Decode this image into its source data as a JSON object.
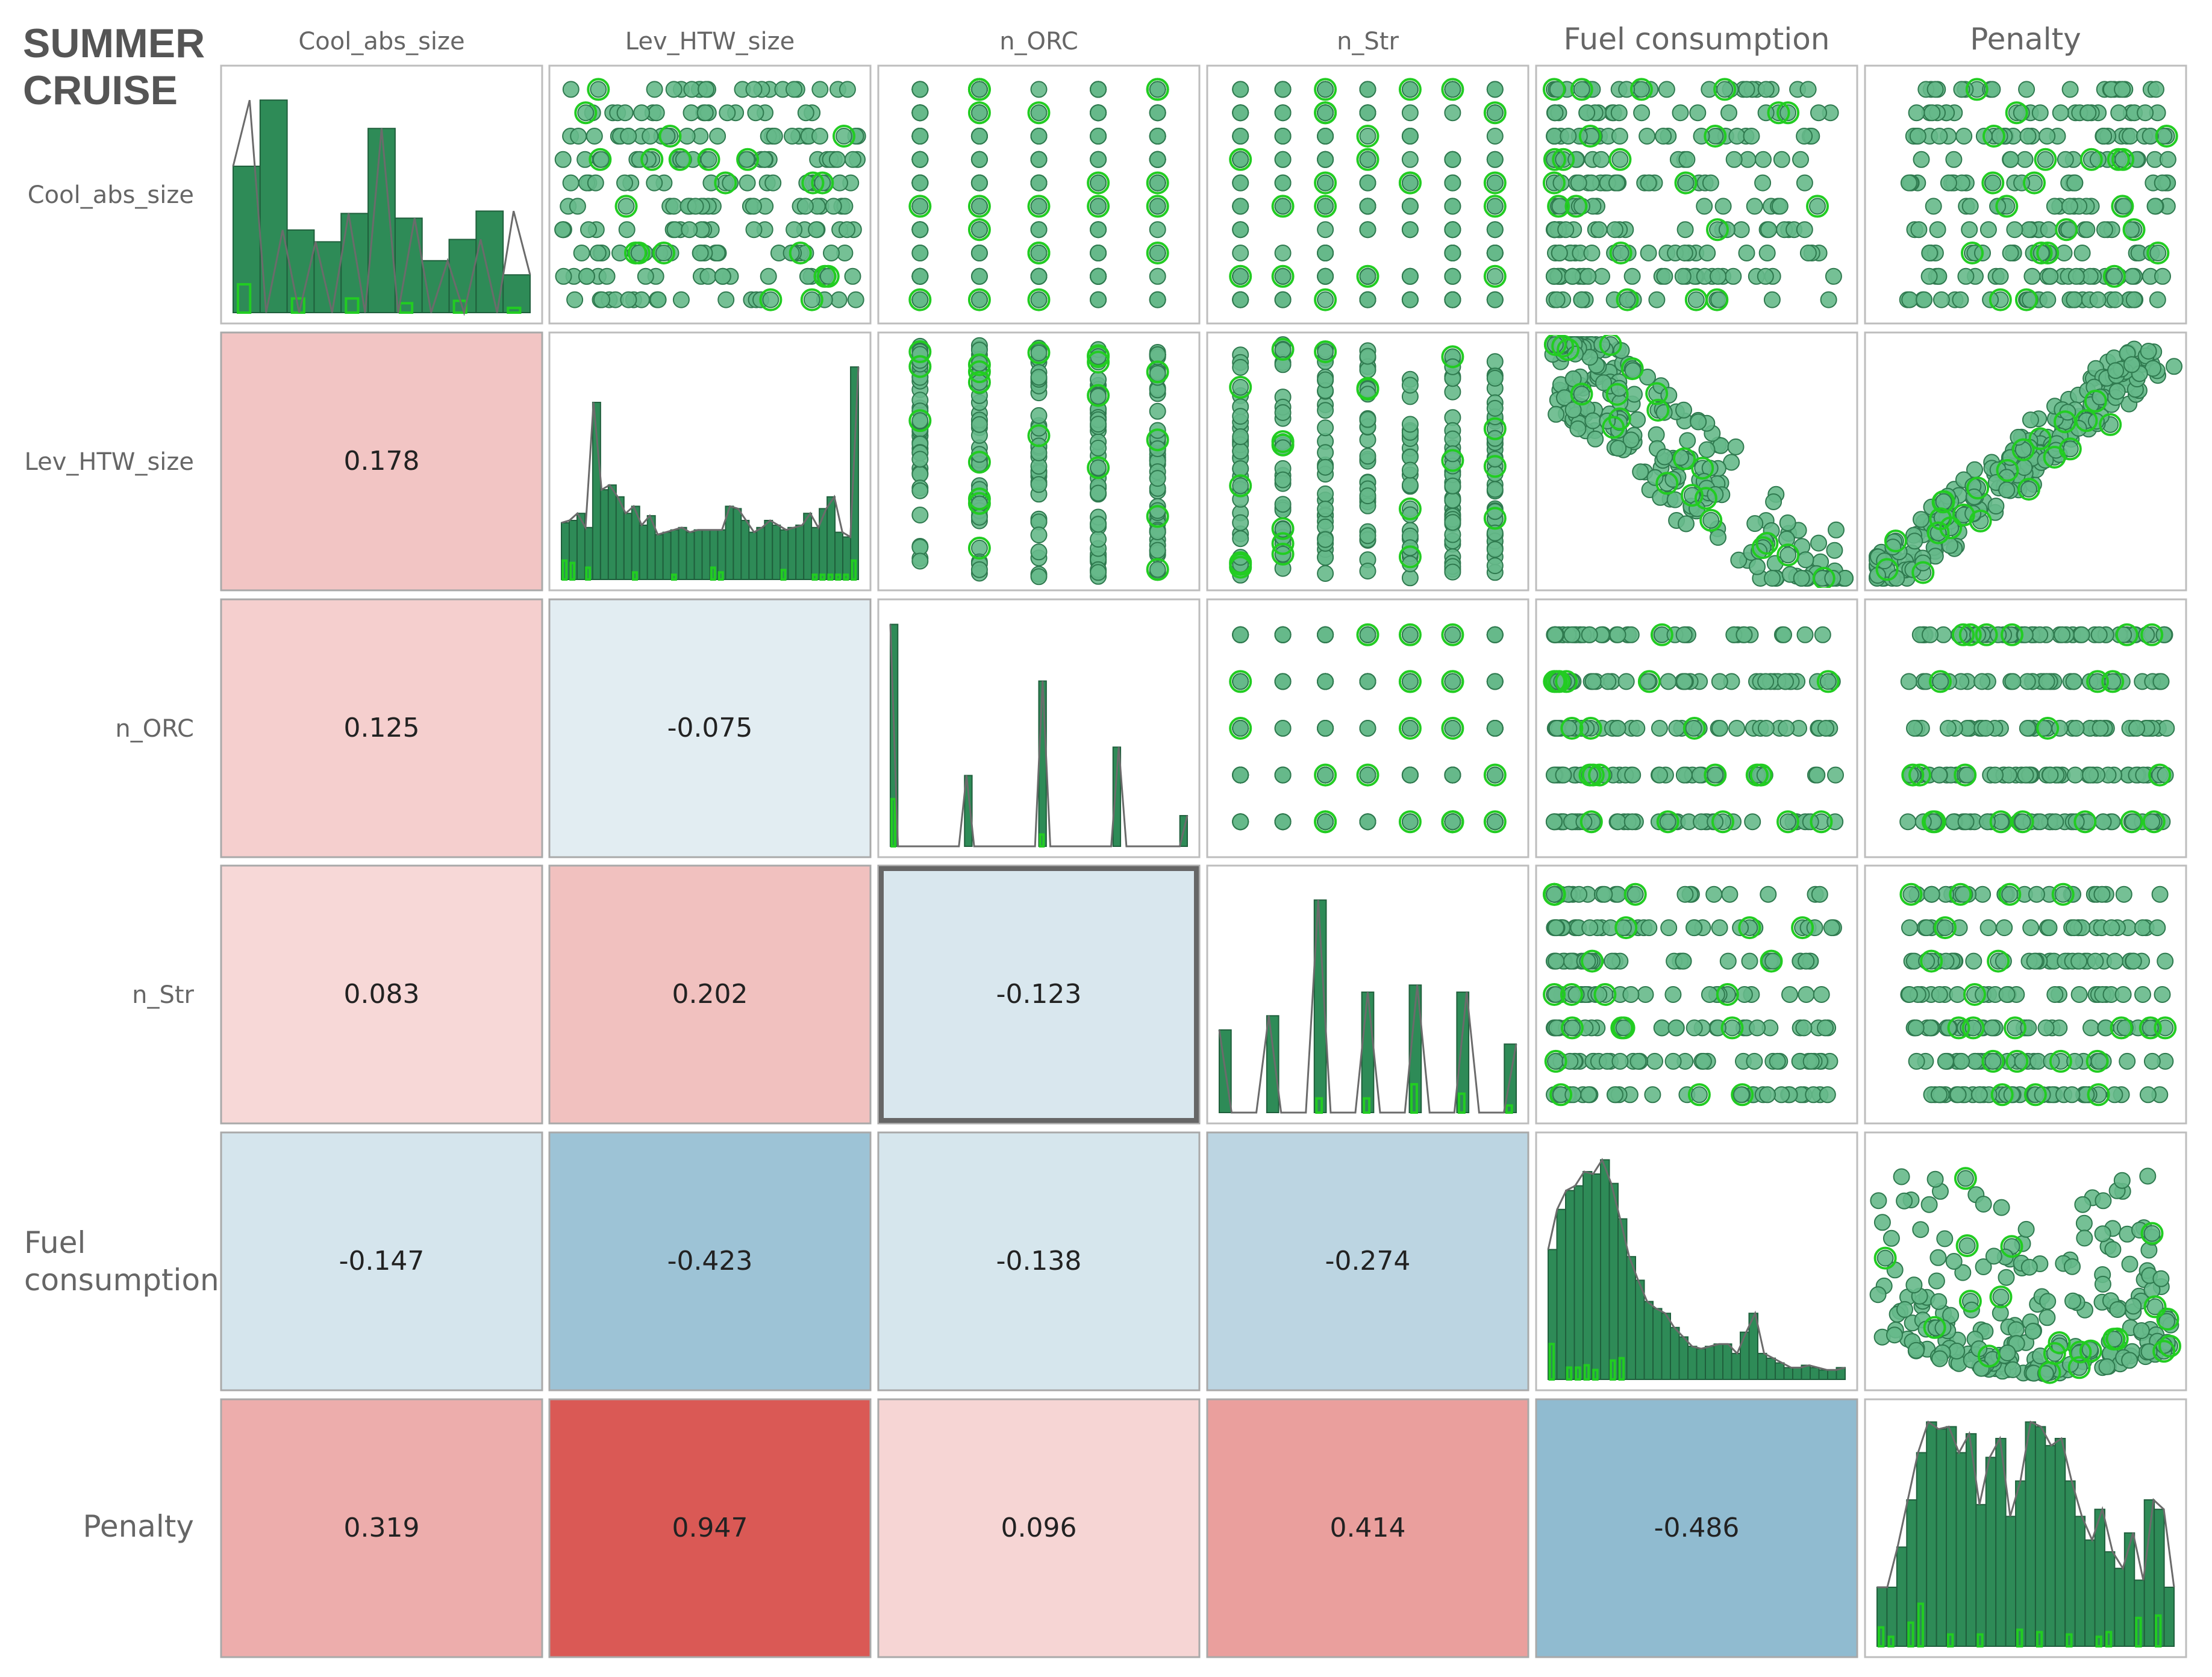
{
  "title": [
    "SUMMER",
    "CRUISE"
  ],
  "colors": {
    "bar_fill": "#2e8b57",
    "bar_stroke": "#1f5f3c",
    "line": "#6b6b6b",
    "highlight": "#22cc22",
    "point_fill": "#66b98a",
    "point_stroke": "#2f7a4f",
    "selected_border": "#666666"
  },
  "chart_data": {
    "type": "scatter-matrix",
    "variables": [
      "Cool_abs_size",
      "Lev_HTW_size",
      "n_ORC",
      "n_Str",
      "Fuel consumption",
      "Penalty"
    ],
    "row_labels": [
      [
        "Cool_abs_size"
      ],
      [
        "Lev_HTW_size"
      ],
      [
        "n_ORC"
      ],
      [
        "n_Str"
      ],
      [
        "Fuel",
        "consumption"
      ],
      [
        "Penalty"
      ]
    ],
    "correlations": [
      {
        "row": "Lev_HTW_size",
        "col": "Cool_abs_size",
        "value": "0.178"
      },
      {
        "row": "n_ORC",
        "col": "Cool_abs_size",
        "value": "0.125"
      },
      {
        "row": "n_ORC",
        "col": "Lev_HTW_size",
        "value": "-0.075"
      },
      {
        "row": "n_Str",
        "col": "Cool_abs_size",
        "value": "0.083"
      },
      {
        "row": "n_Str",
        "col": "Lev_HTW_size",
        "value": "0.202"
      },
      {
        "row": "n_Str",
        "col": "n_ORC",
        "value": "-0.123"
      },
      {
        "row": "Fuel consumption",
        "col": "Cool_abs_size",
        "value": "-0.147"
      },
      {
        "row": "Fuel consumption",
        "col": "Lev_HTW_size",
        "value": "-0.423"
      },
      {
        "row": "Fuel consumption",
        "col": "n_ORC",
        "value": "-0.138"
      },
      {
        "row": "Fuel consumption",
        "col": "n_Str",
        "value": "-0.274"
      },
      {
        "row": "Penalty",
        "col": "Cool_abs_size",
        "value": "0.319"
      },
      {
        "row": "Penalty",
        "col": "Lev_HTW_size",
        "value": "0.947"
      },
      {
        "row": "Penalty",
        "col": "n_ORC",
        "value": "0.096"
      },
      {
        "row": "Penalty",
        "col": "n_Str",
        "value": "0.414"
      },
      {
        "row": "Penalty",
        "col": "Fuel consumption",
        "value": "-0.486"
      }
    ],
    "selected_cell": {
      "row": "n_Str",
      "col": "n_ORC"
    },
    "histograms": [
      {
        "var": "Cool_abs_size",
        "values": [
          0.62,
          0.9,
          0.35,
          0.3,
          0.42,
          0.78,
          0.4,
          0.22,
          0.31,
          0.43,
          0.16
        ],
        "highlight": [
          0.12,
          0.0,
          0.06,
          0.0,
          0.06,
          0.0,
          0.04,
          0.0,
          0.05,
          0.0,
          0.02
        ],
        "line": [
          0.62,
          0.9,
          0.0,
          0.35,
          0.0,
          0.3,
          0.0,
          0.42,
          0.0,
          0.78,
          0.0,
          0.4,
          0.0,
          0.22,
          0.0,
          0.31,
          0.0,
          0.43,
          0.16
        ]
      },
      {
        "var": "Lev_HTW_size",
        "values": [
          0.24,
          0.25,
          0.28,
          0.22,
          0.75,
          0.38,
          0.4,
          0.35,
          0.28,
          0.31,
          0.23,
          0.27,
          0.19,
          0.2,
          0.21,
          0.22,
          0.2,
          0.21,
          0.21,
          0.21,
          0.21,
          0.31,
          0.3,
          0.25,
          0.2,
          0.22,
          0.25,
          0.23,
          0.21,
          0.22,
          0.23,
          0.28,
          0.22,
          0.3,
          0.35,
          0.2,
          0.18,
          0.9
        ],
        "highlight": [
          0.08,
          0.07,
          0.0,
          0.05,
          0.0,
          0.0,
          0.0,
          0.0,
          0.0,
          0.03,
          0.0,
          0.0,
          0.0,
          0.0,
          0.02,
          0.0,
          0.0,
          0.0,
          0.0,
          0.05,
          0.03,
          0.0,
          0.0,
          0.0,
          0.0,
          0.0,
          0.0,
          0.0,
          0.04,
          0.0,
          0.0,
          0.0,
          0.02,
          0.02,
          0.02,
          0.02,
          0.02,
          0.08
        ],
        "line": [
          0.24,
          0.25,
          0.28,
          0.22,
          0.75,
          0.38,
          0.4,
          0.35,
          0.28,
          0.31,
          0.23,
          0.27,
          0.19,
          0.2,
          0.21,
          0.22,
          0.2,
          0.21,
          0.21,
          0.21,
          0.21,
          0.31,
          0.3,
          0.25,
          0.2,
          0.22,
          0.25,
          0.23,
          0.21,
          0.22,
          0.23,
          0.28,
          0.22,
          0.3,
          0.35,
          0.2,
          0.18,
          0.9
        ]
      },
      {
        "var": "n_ORC",
        "values": [
          0.94,
          0.0,
          0.0,
          0.0,
          0.0,
          0.0,
          0.0,
          0.0,
          0.0,
          0.0,
          0.3,
          0.0,
          0.0,
          0.0,
          0.0,
          0.0,
          0.0,
          0.0,
          0.0,
          0.0,
          0.7,
          0.0,
          0.0,
          0.0,
          0.0,
          0.0,
          0.0,
          0.0,
          0.0,
          0.0,
          0.42,
          0.0,
          0.0,
          0.0,
          0.0,
          0.0,
          0.0,
          0.0,
          0.0,
          0.13
        ],
        "highlight": [
          0.2,
          0.0,
          0.0,
          0.0,
          0.0,
          0.0,
          0.0,
          0.0,
          0.0,
          0.0,
          0.0,
          0.0,
          0.0,
          0.0,
          0.0,
          0.0,
          0.0,
          0.0,
          0.0,
          0.0,
          0.05,
          0.0,
          0.0,
          0.0,
          0.0,
          0.0,
          0.0,
          0.0,
          0.0,
          0.0,
          0.0,
          0.0,
          0.0,
          0.0,
          0.0,
          0.0,
          0.0,
          0.0,
          0.0,
          0.0
        ],
        "line": [
          0.94,
          0.0,
          0.0,
          0.0,
          0.0,
          0.0,
          0.0,
          0.0,
          0.0,
          0.0,
          0.3,
          0.0,
          0.0,
          0.0,
          0.0,
          0.0,
          0.0,
          0.0,
          0.0,
          0.0,
          0.7,
          0.0,
          0.0,
          0.0,
          0.0,
          0.0,
          0.0,
          0.0,
          0.0,
          0.0,
          0.42,
          0.0,
          0.0,
          0.0,
          0.0,
          0.0,
          0.0,
          0.0,
          0.0,
          0.13
        ]
      },
      {
        "var": "n_Str",
        "values": [
          0.35,
          0.0,
          0.0,
          0.0,
          0.41,
          0.0,
          0.0,
          0.0,
          0.9,
          0.0,
          0.0,
          0.0,
          0.51,
          0.0,
          0.0,
          0.0,
          0.54,
          0.0,
          0.0,
          0.0,
          0.51,
          0.0,
          0.0,
          0.0,
          0.29
        ],
        "highlight": [
          0.0,
          0.0,
          0.0,
          0.0,
          0.0,
          0.0,
          0.0,
          0.0,
          0.06,
          0.0,
          0.0,
          0.0,
          0.06,
          0.0,
          0.0,
          0.0,
          0.12,
          0.0,
          0.0,
          0.0,
          0.08,
          0.0,
          0.0,
          0.0,
          0.03
        ],
        "line": [
          0.35,
          0.0,
          0.0,
          0.0,
          0.41,
          0.0,
          0.0,
          0.0,
          0.9,
          0.0,
          0.0,
          0.0,
          0.51,
          0.0,
          0.0,
          0.0,
          0.54,
          0.0,
          0.0,
          0.0,
          0.51,
          0.0,
          0.0,
          0.0,
          0.29
        ]
      },
      {
        "var": "Fuel consumption",
        "values": [
          0.55,
          0.72,
          0.8,
          0.82,
          0.88,
          0.87,
          0.93,
          0.83,
          0.68,
          0.52,
          0.42,
          0.33,
          0.3,
          0.28,
          0.22,
          0.18,
          0.14,
          0.13,
          0.14,
          0.15,
          0.15,
          0.11,
          0.2,
          0.28,
          0.11,
          0.09,
          0.07,
          0.05,
          0.05,
          0.06,
          0.05,
          0.04,
          0.04,
          0.05
        ],
        "highlight": [
          0.15,
          0.0,
          0.05,
          0.05,
          0.06,
          0.04,
          0.0,
          0.08,
          0.09,
          0.0,
          0.0,
          0.0,
          0.0,
          0.0,
          0.0,
          0.0,
          0.0,
          0.0,
          0.0,
          0.0,
          0.0,
          0.0,
          0.0,
          0.0,
          0.0,
          0.0,
          0.0,
          0.0,
          0.0,
          0.0,
          0.0,
          0.0,
          0.0,
          0.0
        ],
        "line": [
          0.55,
          0.72,
          0.8,
          0.82,
          0.88,
          0.87,
          0.93,
          0.83,
          0.68,
          0.52,
          0.42,
          0.33,
          0.3,
          0.28,
          0.22,
          0.18,
          0.14,
          0.13,
          0.14,
          0.15,
          0.15,
          0.11,
          0.2,
          0.28,
          0.11,
          0.09,
          0.07,
          0.05,
          0.05,
          0.06,
          0.05,
          0.04,
          0.04,
          0.05
        ]
      },
      {
        "var": "Penalty",
        "values": [
          0.25,
          0.25,
          0.42,
          0.62,
          0.82,
          0.95,
          0.92,
          0.93,
          0.82,
          0.9,
          0.6,
          0.8,
          0.88,
          0.55,
          0.7,
          0.95,
          0.93,
          0.85,
          0.88,
          0.7,
          0.55,
          0.45,
          0.58,
          0.4,
          0.33,
          0.48,
          0.28,
          0.62,
          0.58,
          0.25
        ],
        "highlight": [
          0.08,
          0.04,
          0.0,
          0.1,
          0.18,
          0.0,
          0.0,
          0.05,
          0.0,
          0.0,
          0.05,
          0.0,
          0.0,
          0.0,
          0.07,
          0.0,
          0.06,
          0.0,
          0.0,
          0.05,
          0.0,
          0.0,
          0.04,
          0.06,
          0.0,
          0.0,
          0.12,
          0.0,
          0.13,
          0.0
        ],
        "line": [
          0.25,
          0.25,
          0.42,
          0.62,
          0.82,
          0.95,
          0.92,
          0.93,
          0.82,
          0.9,
          0.6,
          0.8,
          0.88,
          0.55,
          0.7,
          0.95,
          0.93,
          0.85,
          0.88,
          0.7,
          0.55,
          0.45,
          0.58,
          0.4,
          0.33,
          0.48,
          0.28,
          0.62,
          0.58,
          0.25
        ]
      }
    ],
    "scatter_patterns": {
      "Cool_abs_size-Lev_HTW_size": "discrete-x-10, continuous-y",
      "Cool_abs_size-n_ORC": "5 discrete columns vs 10 discrete rows",
      "Cool_abs_size-n_Str": "7 discrete columns vs 10 discrete rows",
      "Lev_HTW_size-Fuel consumption": "negative trend",
      "Lev_HTW_size-Penalty": "strong positive linear trend",
      "Fuel consumption-Penalty": "negative curved trend"
    }
  }
}
